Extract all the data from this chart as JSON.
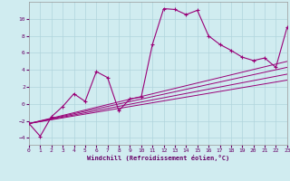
{
  "title": "",
  "xlabel": "Windchill (Refroidissement éolien,°C)",
  "background_color": "#d0ecf0",
  "grid_color": "#b0d5dc",
  "line_color": "#990077",
  "xlim": [
    0,
    23
  ],
  "ylim": [
    -4.8,
    12.0
  ],
  "xticks": [
    0,
    1,
    2,
    3,
    4,
    5,
    6,
    7,
    8,
    9,
    10,
    11,
    12,
    13,
    14,
    15,
    16,
    17,
    18,
    19,
    20,
    21,
    22,
    23
  ],
  "yticks": [
    -4,
    -2,
    0,
    2,
    4,
    6,
    8,
    10
  ],
  "series": [
    [
      0,
      -2.3
    ],
    [
      1,
      -3.8
    ],
    [
      2,
      -1.5
    ],
    [
      3,
      -0.3
    ],
    [
      4,
      1.2
    ],
    [
      5,
      0.3
    ],
    [
      6,
      3.8
    ],
    [
      7,
      3.1
    ],
    [
      8,
      -0.8
    ],
    [
      9,
      0.6
    ],
    [
      10,
      0.8
    ],
    [
      11,
      7.0
    ],
    [
      12,
      11.2
    ],
    [
      13,
      11.1
    ],
    [
      14,
      10.5
    ],
    [
      15,
      11.0
    ],
    [
      16,
      8.0
    ],
    [
      17,
      7.0
    ],
    [
      18,
      6.3
    ],
    [
      19,
      5.5
    ],
    [
      20,
      5.1
    ],
    [
      21,
      5.4
    ],
    [
      22,
      4.3
    ],
    [
      23,
      9.0
    ]
  ],
  "straight_lines": [
    [
      [
        0,
        -2.3
      ],
      [
        23,
        5.0
      ]
    ],
    [
      [
        0,
        -2.3
      ],
      [
        23,
        4.3
      ]
    ],
    [
      [
        0,
        -2.3
      ],
      [
        23,
        3.5
      ]
    ],
    [
      [
        0,
        -2.3
      ],
      [
        23,
        2.8
      ]
    ]
  ]
}
